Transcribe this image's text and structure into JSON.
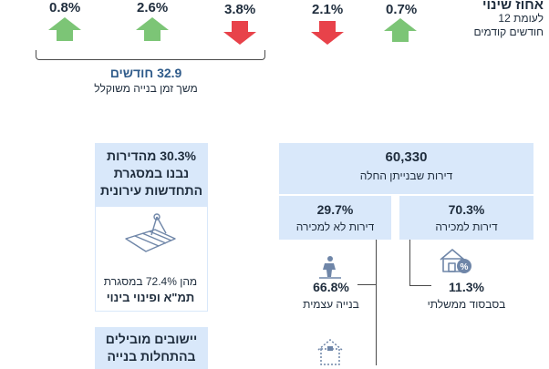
{
  "changes": [
    {
      "value": "0.8%",
      "direction": "up"
    },
    {
      "value": "2.6%",
      "direction": "up"
    },
    {
      "value": "3.8%",
      "direction": "down"
    },
    {
      "value": "2.1%",
      "direction": "down"
    },
    {
      "value": "0.7%",
      "direction": "up"
    }
  ],
  "header": {
    "title": "אחוז שינוי",
    "line2": "לעומת 12",
    "line3": "חודשים קודמים"
  },
  "duration": {
    "value": "32.9 חודשים",
    "label": "משך זמן בנייה משוקלל"
  },
  "total": {
    "value": "60,330",
    "label": "דירות שבנייתן החלה"
  },
  "for_sale": {
    "value": "70.3%",
    "label": "דירות למכירה"
  },
  "not_for_sale": {
    "value": "29.7%",
    "label": "דירות לא למכירה"
  },
  "subsidized": {
    "value": "11.3%",
    "label": "בסבסוד ממשלתי"
  },
  "self_build": {
    "value": "66.8%",
    "label": "בנייה עצמית"
  },
  "urban_renewal": {
    "line1": "30.3% מהדירות",
    "line2": "נבנו במסגרת",
    "line3": "התחדשות עירונית",
    "sub1": "מהן 72.4% במסגרת",
    "sub2": "תמ\"א ופינוי בינוי"
  },
  "leading_towns": {
    "line1": "יישובים מובילים",
    "line2": "בהתחלות בנייה"
  },
  "colors": {
    "up": "#7cc576",
    "down": "#e8424a",
    "box": "#d9e8fa"
  }
}
